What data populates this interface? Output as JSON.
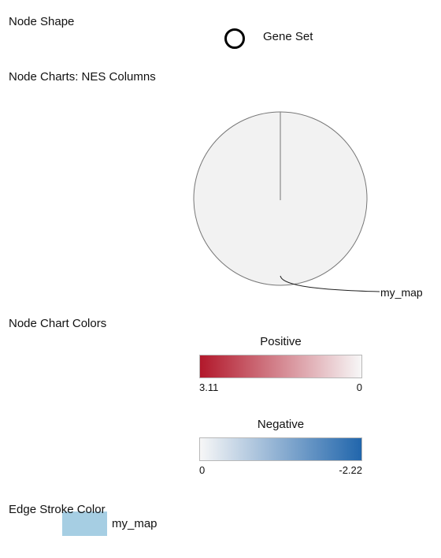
{
  "legend": {
    "node_shape": {
      "title": "Node Shape",
      "shape_icon": "circle-outline-icon",
      "label": "Gene Set"
    },
    "node_charts": {
      "title": "Node Charts: NES Columns",
      "pie_label": "my_map",
      "pie_color": "#f2f2f2"
    },
    "node_chart_colors": {
      "title": "Node Chart Colors",
      "positive": {
        "title": "Positive",
        "min_label": "3.11",
        "max_label": "0",
        "color_start": "#b2182b",
        "color_end": "#f7f7f7"
      },
      "negative": {
        "title": "Negative",
        "min_label": "0",
        "max_label": "-2.22",
        "color_start": "#f7f7f7",
        "color_end": "#2166ac"
      }
    },
    "edge_stroke": {
      "title": "Edge Stroke Color",
      "label": "my_map",
      "swatch_color": "#a6cee3"
    }
  }
}
